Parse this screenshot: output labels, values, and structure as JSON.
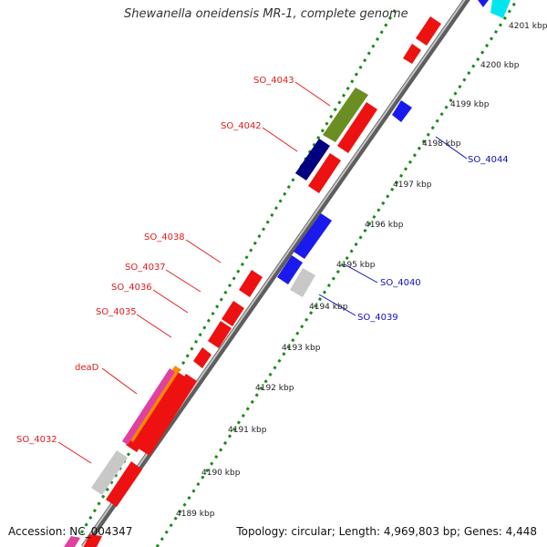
{
  "header": {
    "title": "Shewanella oneidensis MR-1, complete genome"
  },
  "footer": {
    "accession": "Accession: NC_004347",
    "summary": "Topology: circular; Length: 4,969,803 bp; Genes: 4,448"
  },
  "ticks": [
    {
      "label": "4189 kbp",
      "kbp": 4189
    },
    {
      "label": "4190 kbp",
      "kbp": 4190
    },
    {
      "label": "4191 kbp",
      "kbp": 4191
    },
    {
      "label": "4192 kbp",
      "kbp": 4192
    },
    {
      "label": "4193 kbp",
      "kbp": 4193
    },
    {
      "label": "4194 kbp",
      "kbp": 4194
    },
    {
      "label": "4195 kbp",
      "kbp": 4195
    },
    {
      "label": "4196 kbp",
      "kbp": 4196
    },
    {
      "label": "4197 kbp",
      "kbp": 4197
    },
    {
      "label": "4198 kbp",
      "kbp": 4198
    },
    {
      "label": "4199 kbp",
      "kbp": 4199
    },
    {
      "label": "4200 kbp",
      "kbp": 4200
    },
    {
      "label": "4201 kbp",
      "kbp": 4201
    }
  ],
  "gene_labels": [
    {
      "label": "SO_4032",
      "strand": "forward",
      "color": "#e31a1c"
    },
    {
      "label": "deaD",
      "strand": "forward",
      "color": "#e31a1c"
    },
    {
      "label": "SO_4035",
      "strand": "forward",
      "color": "#e31a1c"
    },
    {
      "label": "SO_4036",
      "strand": "forward",
      "color": "#e31a1c"
    },
    {
      "label": "SO_4037",
      "strand": "forward",
      "color": "#e31a1c"
    },
    {
      "label": "SO_4038",
      "strand": "forward",
      "color": "#e31a1c"
    },
    {
      "label": "SO_4042",
      "strand": "forward",
      "color": "#e31a1c"
    },
    {
      "label": "SO_4043",
      "strand": "forward",
      "color": "#e31a1c"
    },
    {
      "label": "SO_4039",
      "strand": "reverse",
      "color": "#1010c0"
    },
    {
      "label": "SO_4040",
      "strand": "reverse",
      "color": "#1010c0"
    },
    {
      "label": "SO_4044",
      "strand": "reverse",
      "color": "#1010c0"
    }
  ],
  "colors": {
    "forward_gene": "#ee1111",
    "reverse_gene": "#1a1aee",
    "pseudo_gene": "#c8c8c8",
    "olive_gene": "#6b8e23",
    "navy_gene": "#000080",
    "cyan_gene": "#00e5ee",
    "magenta_gene": "#e040a0",
    "backbone": "#9a9a9a",
    "tick_dots": "#1a8a1a"
  }
}
